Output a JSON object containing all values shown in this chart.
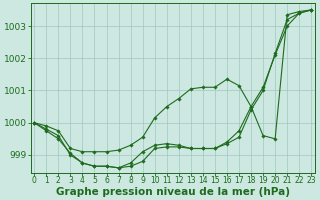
{
  "x": [
    0,
    1,
    2,
    3,
    4,
    5,
    6,
    7,
    8,
    9,
    10,
    11,
    12,
    13,
    14,
    15,
    16,
    17,
    18,
    19,
    20,
    21,
    22,
    23
  ],
  "line1": [
    1000.0,
    999.8,
    999.6,
    999.0,
    998.75,
    998.65,
    998.65,
    998.6,
    998.65,
    998.8,
    999.2,
    999.25,
    999.25,
    999.2,
    999.2,
    999.2,
    999.35,
    999.55,
    1000.4,
    1001.0,
    1002.15,
    1003.2,
    1003.4,
    1003.5
  ],
  "line2": [
    1000.0,
    999.75,
    999.5,
    999.05,
    998.75,
    998.65,
    998.65,
    998.6,
    998.75,
    999.1,
    999.3,
    999.35,
    999.3,
    999.2,
    999.2,
    999.2,
    999.4,
    999.75,
    1000.5,
    1001.1,
    1002.1,
    1003.0,
    1003.4,
    1003.5
  ],
  "line3": [
    1000.0,
    999.9,
    999.75,
    999.2,
    999.1,
    999.1,
    999.1,
    999.15,
    999.3,
    999.55,
    1000.15,
    1000.5,
    1000.75,
    1001.05,
    1001.1,
    1001.1,
    1001.35,
    1001.15,
    1000.5,
    999.6,
    999.5,
    1003.35,
    1003.45,
    1003.5
  ],
  "ylim": [
    998.45,
    1003.7
  ],
  "yticks": [
    999,
    1000,
    1001,
    1002,
    1003
  ],
  "xlim": [
    -0.3,
    23.3
  ],
  "xticks": [
    0,
    1,
    2,
    3,
    4,
    5,
    6,
    7,
    8,
    9,
    10,
    11,
    12,
    13,
    14,
    15,
    16,
    17,
    18,
    19,
    20,
    21,
    22,
    23
  ],
  "xlabel": "Graphe pression niveau de la mer (hPa)",
  "bg_color": "#cce8e0",
  "line_color": "#1e6b1e",
  "grid_color": "#a0c8c0",
  "marker": "D",
  "markersize": 1.8,
  "linewidth": 0.8,
  "xlabel_fontsize": 7.5,
  "ytick_fontsize": 6.5,
  "xtick_fontsize": 5.5
}
